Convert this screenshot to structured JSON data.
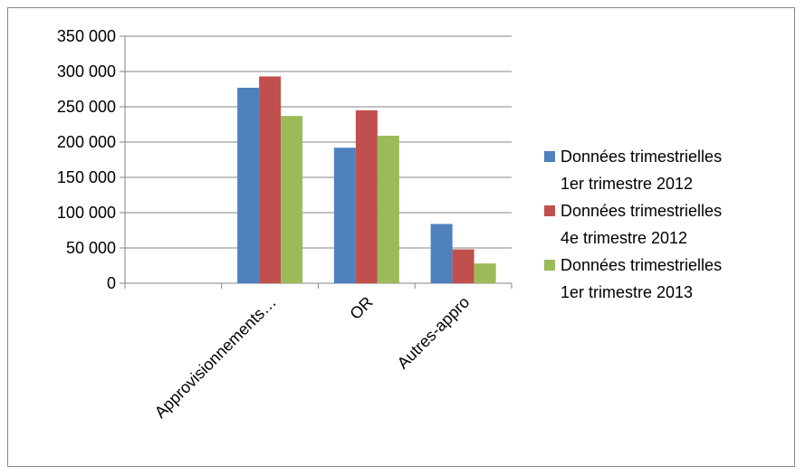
{
  "chart_data": {
    "type": "bar",
    "title": "",
    "xlabel": "",
    "ylabel": "",
    "categories": [
      "",
      "Approvisionnements…",
      "OR",
      "Autres-appro"
    ],
    "series": [
      {
        "name_lines": [
          "Données trimestrielles",
          "1er trimestre 2012"
        ],
        "color": "#4F81BD",
        "values": [
          null,
          277000,
          192000,
          84000
        ]
      },
      {
        "name_lines": [
          "Données trimestrielles",
          "4e trimestre 2012"
        ],
        "color": "#C0504D",
        "values": [
          null,
          293000,
          245000,
          48000
        ]
      },
      {
        "name_lines": [
          "Données trimestrielles",
          "1er trimestre 2013"
        ],
        "color": "#9BBB59",
        "values": [
          null,
          237000,
          209000,
          28000
        ]
      }
    ],
    "ylim": [
      0,
      350000
    ],
    "yticks": [
      "0",
      "50 000",
      "100 000",
      "150 000",
      "200 000",
      "250 000",
      "300 000",
      "350 000"
    ],
    "grid": true,
    "legend_position": "right"
  }
}
